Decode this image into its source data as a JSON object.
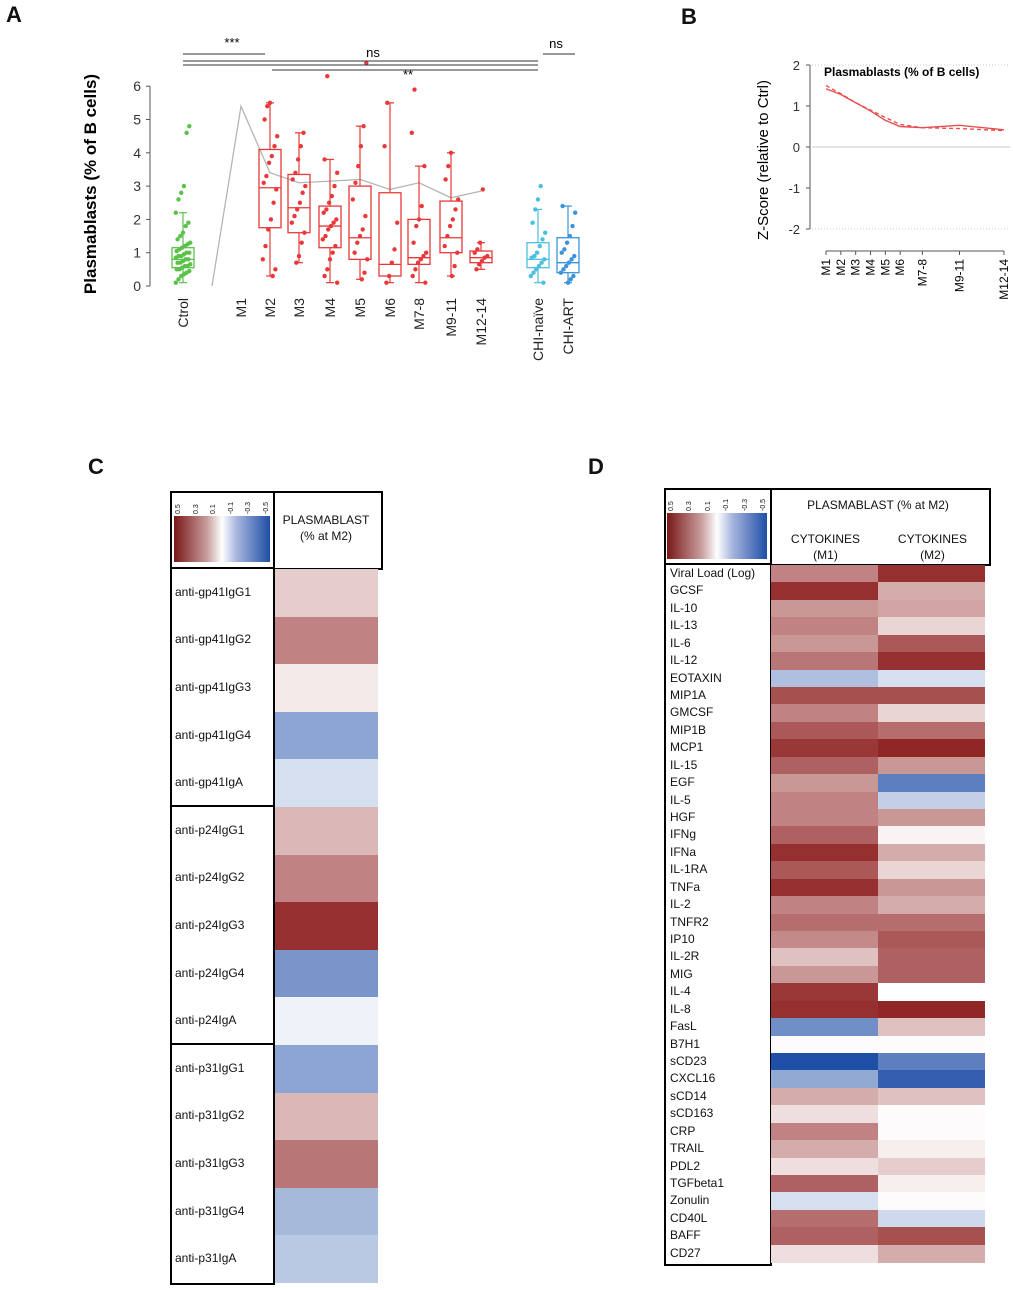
{
  "panels": {
    "a": "A",
    "b": "B",
    "c": "C",
    "d": "D"
  },
  "colors": {
    "ctrl": "#5cc14a",
    "acute": "#e8393a",
    "chi_naive": "#4bbfe0",
    "chi_art": "#3b94db",
    "trend": "#b5b5b5",
    "red_dark": "#8b1a1a",
    "blue_dark": "#1f4fa6"
  },
  "chart_data": [
    {
      "id": "A",
      "type": "box",
      "ylabel": "Plasmablasts (% of B cells)",
      "ylim": [
        0,
        7
      ],
      "yticks": [
        0,
        1,
        2,
        3,
        4,
        5,
        6
      ],
      "categories": [
        "Ctrol",
        "M1",
        "M2",
        "M3",
        "M4",
        "M5",
        "M6",
        "M7-8",
        "M9-11",
        "M12-14",
        "CHI-naïve",
        "CHI-ART"
      ],
      "boxes": [
        {
          "cat": "Ctrol",
          "q1": 0.55,
          "median": 0.8,
          "q3": 1.15,
          "min": 0.1,
          "max": 2.2,
          "color": "ctrl",
          "points": [
            0.1,
            0.2,
            0.3,
            0.35,
            0.4,
            0.45,
            0.5,
            0.5,
            0.55,
            0.6,
            0.6,
            0.65,
            0.7,
            0.7,
            0.75,
            0.8,
            0.8,
            0.85,
            0.9,
            0.9,
            0.95,
            1.0,
            1.0,
            1.05,
            1.1,
            1.15,
            1.2,
            1.25,
            1.3,
            1.4,
            1.5,
            1.6,
            1.8,
            1.9,
            2.2,
            2.6,
            2.8,
            3.0,
            4.6,
            4.8
          ]
        },
        {
          "cat": "M2",
          "q1": 1.75,
          "median": 2.95,
          "q3": 4.1,
          "min": 0.3,
          "max": 5.5,
          "color": "acute",
          "points": [
            0.3,
            0.5,
            0.8,
            1.2,
            1.7,
            2.0,
            2.5,
            2.9,
            3.1,
            3.3,
            3.7,
            3.9,
            4.2,
            4.5,
            5.0,
            5.4,
            5.5
          ]
        },
        {
          "cat": "M3",
          "q1": 1.6,
          "median": 2.35,
          "q3": 3.35,
          "min": 0.7,
          "max": 4.6,
          "color": "acute",
          "points": [
            0.7,
            0.9,
            1.3,
            1.6,
            1.9,
            2.1,
            2.3,
            2.5,
            2.8,
            3.0,
            3.2,
            3.4,
            3.8,
            4.2,
            4.6
          ]
        },
        {
          "cat": "M4",
          "q1": 1.15,
          "median": 1.8,
          "q3": 2.4,
          "min": 0.1,
          "max": 3.8,
          "color": "acute",
          "points": [
            0.1,
            0.3,
            0.5,
            0.8,
            1.0,
            1.2,
            1.4,
            1.5,
            1.7,
            1.8,
            1.9,
            2.0,
            2.2,
            2.3,
            2.5,
            2.7,
            3.0,
            3.4,
            3.8,
            6.3
          ]
        },
        {
          "cat": "M5",
          "q1": 0.8,
          "median": 1.45,
          "q3": 3.0,
          "min": 0.2,
          "max": 4.8,
          "color": "acute",
          "points": [
            0.2,
            0.4,
            0.8,
            1.0,
            1.3,
            1.5,
            1.7,
            2.1,
            2.6,
            3.1,
            3.6,
            4.2,
            4.8,
            6.7
          ]
        },
        {
          "cat": "M6",
          "q1": 0.3,
          "median": 0.65,
          "q3": 2.8,
          "min": 0.1,
          "max": 5.5,
          "color": "acute",
          "points": [
            0.1,
            0.3,
            0.7,
            1.1,
            1.9,
            4.2,
            5.5
          ]
        },
        {
          "cat": "M7-8",
          "q1": 0.65,
          "median": 0.85,
          "q3": 2.0,
          "min": 0.1,
          "max": 3.6,
          "color": "acute",
          "points": [
            0.1,
            0.3,
            0.5,
            0.7,
            0.8,
            0.9,
            1.0,
            1.3,
            1.8,
            2.0,
            2.4,
            3.6,
            4.6,
            5.9
          ]
        },
        {
          "cat": "M9-11",
          "q1": 1.0,
          "median": 1.45,
          "q3": 2.55,
          "min": 0.3,
          "max": 4.0,
          "color": "acute",
          "points": [
            0.3,
            0.6,
            1.0,
            1.2,
            1.5,
            1.8,
            2.0,
            2.3,
            2.6,
            3.2,
            3.6,
            4.0
          ]
        },
        {
          "cat": "M12-14",
          "q1": 0.7,
          "median": 0.85,
          "q3": 1.05,
          "min": 0.5,
          "max": 1.3,
          "color": "acute",
          "points": [
            0.5,
            0.65,
            0.75,
            0.85,
            0.9,
            1.0,
            1.1,
            1.3,
            2.9
          ]
        },
        {
          "cat": "CHI-naïve",
          "q1": 0.55,
          "median": 0.8,
          "q3": 1.3,
          "min": 0.1,
          "max": 2.3,
          "color": "chi_naive",
          "points": [
            0.1,
            0.3,
            0.4,
            0.5,
            0.6,
            0.7,
            0.8,
            0.85,
            0.9,
            1.0,
            1.2,
            1.4,
            1.6,
            1.9,
            2.3,
            2.6,
            3.0
          ]
        },
        {
          "cat": "CHI-ART",
          "q1": 0.4,
          "median": 0.7,
          "q3": 1.45,
          "min": 0.1,
          "max": 2.4,
          "color": "chi_art",
          "points": [
            0.1,
            0.2,
            0.3,
            0.4,
            0.5,
            0.6,
            0.7,
            0.8,
            0.9,
            1.0,
            1.1,
            1.3,
            1.5,
            1.8,
            2.2,
            2.4
          ]
        }
      ],
      "trend_line": {
        "categories": [
          "Ctrol",
          "M1",
          "M2",
          "M3",
          "M4",
          "M5",
          "M6",
          "M7-8",
          "M9-11",
          "M12-14"
        ],
        "values": [
          0,
          5.4,
          3.4,
          3.1,
          3.15,
          3.2,
          2.9,
          3.1,
          2.65,
          2.85
        ]
      },
      "significance": [
        {
          "label": "***",
          "from": "Ctrol",
          "to": "M2",
          "level": 1
        },
        {
          "label": "ns",
          "from": "Ctrol",
          "to": "CHI-naïve",
          "level": 0
        },
        {
          "label": "**",
          "from": "M4",
          "to": "CHI-naïve",
          "level": 2
        },
        {
          "label": "ns",
          "from": "CHI-naïve",
          "to": "CHI-ART",
          "level": 1
        }
      ]
    },
    {
      "id": "B",
      "type": "line",
      "title": "Plasmablasts (% of B cells)",
      "ylabel": "Z-Score (relative to Ctrl)",
      "ylim": [
        -2,
        2
      ],
      "yticks": [
        2,
        1,
        0,
        -1,
        -2
      ],
      "x": [
        1,
        2,
        3,
        4,
        5,
        6,
        7.5,
        10,
        13
      ],
      "xticklabels": [
        "M1",
        "M2",
        "M3",
        "M4",
        "M5",
        "M6",
        "M7-8",
        "M9-11",
        "M12-14"
      ],
      "series": [
        {
          "name": "smoothed",
          "style": "solid",
          "values": [
            1.42,
            1.28,
            1.08,
            0.88,
            0.65,
            0.5,
            0.47,
            0.53,
            0.42
          ]
        },
        {
          "name": "observed",
          "style": "dashed",
          "values": [
            1.5,
            1.3,
            1.08,
            0.9,
            0.72,
            0.55,
            0.47,
            0.45,
            0.4
          ]
        }
      ]
    },
    {
      "id": "C",
      "type": "heatmap",
      "column_header": "PLASMABLAST (% at M2)",
      "columns": [
        "PLASMABLAST (% at M2)"
      ],
      "legend_ticks": [
        "0.5",
        "0.3",
        "0.1",
        "-0.1",
        "-0.3",
        "-0.5"
      ],
      "groups": [
        [
          {
            "label": "anti-gp41IgG1",
            "value": 0.12
          },
          {
            "label": "anti-gp41IgG2",
            "value": 0.3
          },
          {
            "label": "anti-gp41IgG3",
            "value": 0.05
          },
          {
            "label": "anti-gp41IgG4",
            "value": -0.28
          },
          {
            "label": "anti-gp41IgA",
            "value": -0.1
          }
        ],
        [
          {
            "label": "anti-p24IgG1",
            "value": 0.17
          },
          {
            "label": "anti-p24IgG2",
            "value": 0.3
          },
          {
            "label": "anti-p24IgG3",
            "value": 0.5
          },
          {
            "label": "anti-p24IgG4",
            "value": -0.33
          },
          {
            "label": "anti-p24IgA",
            "value": -0.04
          }
        ],
        [
          {
            "label": "anti-p31IgG1",
            "value": -0.28
          },
          {
            "label": "anti-p31IgG2",
            "value": 0.17
          },
          {
            "label": "anti-p31IgG3",
            "value": 0.33
          },
          {
            "label": "anti-p31IgG4",
            "value": -0.22
          },
          {
            "label": "anti-p31IgA",
            "value": -0.17
          }
        ]
      ]
    },
    {
      "id": "D",
      "type": "heatmap",
      "column_header": "PLASMABLAST (% at M2)",
      "columns": [
        "CYTOKINES\n(M1)",
        "CYTOKINES\n(M2)"
      ],
      "legend_ticks": [
        "0.5",
        "0.3",
        "0.1",
        "-0.1",
        "-0.3",
        "-0.5"
      ],
      "rows": [
        {
          "label": "Viral Load (Log)",
          "values": [
            0.3,
            0.5
          ]
        },
        {
          "label": "GCSF",
          "values": [
            0.5,
            0.2
          ]
        },
        {
          "label": "IL-10",
          "values": [
            0.25,
            0.22
          ]
        },
        {
          "label": "IL-13",
          "values": [
            0.3,
            0.1
          ]
        },
        {
          "label": "IL-6",
          "values": [
            0.25,
            0.4
          ]
        },
        {
          "label": "IL-12",
          "values": [
            0.33,
            0.5
          ]
        },
        {
          "label": "EOTAXIN",
          "values": [
            -0.2,
            -0.1
          ]
        },
        {
          "label": "MIP1A",
          "values": [
            0.42,
            0.42
          ]
        },
        {
          "label": "GMCSF",
          "values": [
            0.3,
            0.1
          ]
        },
        {
          "label": "MIP1B",
          "values": [
            0.4,
            0.35
          ]
        },
        {
          "label": "MCP1",
          "values": [
            0.48,
            0.52
          ]
        },
        {
          "label": "IL-15",
          "values": [
            0.38,
            0.25
          ]
        },
        {
          "label": "EGF",
          "values": [
            0.25,
            -0.4
          ]
        },
        {
          "label": "IL-5",
          "values": [
            0.3,
            -0.15
          ]
        },
        {
          "label": "HGF",
          "values": [
            0.3,
            0.25
          ]
        },
        {
          "label": "IFNg",
          "values": [
            0.38,
            0.03
          ]
        },
        {
          "label": "IFNa",
          "values": [
            0.5,
            0.2
          ]
        },
        {
          "label": "IL-1RA",
          "values": [
            0.4,
            0.1
          ]
        },
        {
          "label": "TNFa",
          "values": [
            0.5,
            0.25
          ]
        },
        {
          "label": "IL-2",
          "values": [
            0.3,
            0.2
          ]
        },
        {
          "label": "TNFR2",
          "values": [
            0.35,
            0.35
          ]
        },
        {
          "label": "IP10",
          "values": [
            0.28,
            0.4
          ]
        },
        {
          "label": "IL-2R",
          "values": [
            0.15,
            0.38
          ]
        },
        {
          "label": "MIG",
          "values": [
            0.25,
            0.38
          ]
        },
        {
          "label": "IL-4",
          "values": [
            0.48,
            0.0
          ]
        },
        {
          "label": "IL-8",
          "values": [
            0.5,
            0.52
          ]
        },
        {
          "label": "FasL",
          "values": [
            -0.35,
            0.15
          ]
        },
        {
          "label": "B7H1",
          "values": [
            0.01,
            0.01
          ]
        },
        {
          "label": "sCD23",
          "values": [
            -0.55,
            -0.4
          ]
        },
        {
          "label": "CXCL16",
          "values": [
            -0.27,
            -0.5
          ]
        },
        {
          "label": "sCD14",
          "values": [
            0.2,
            0.15
          ]
        },
        {
          "label": "sCD163",
          "values": [
            0.08,
            0.01
          ]
        },
        {
          "label": "CRP",
          "values": [
            0.3,
            0.01
          ]
        },
        {
          "label": "TRAIL",
          "values": [
            0.2,
            0.04
          ]
        },
        {
          "label": "PDL2",
          "values": [
            0.08,
            0.12
          ]
        },
        {
          "label": "TGFbeta1",
          "values": [
            0.38,
            0.04
          ]
        },
        {
          "label": "Zonulin",
          "values": [
            -0.1,
            0.01
          ]
        },
        {
          "label": "CD40L",
          "values": [
            0.35,
            -0.12
          ]
        },
        {
          "label": "BAFF",
          "values": [
            0.38,
            0.42
          ]
        },
        {
          "label": "CD27",
          "values": [
            0.08,
            0.2
          ]
        }
      ]
    }
  ]
}
